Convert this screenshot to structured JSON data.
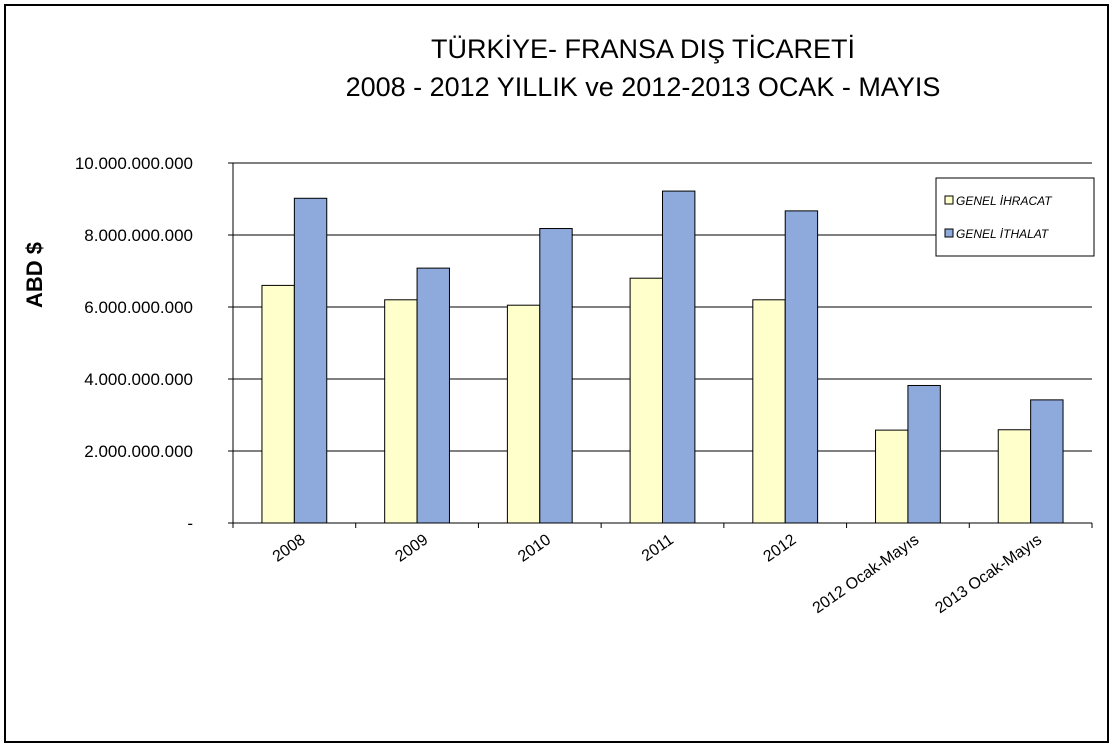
{
  "chart_data": {
    "type": "bar",
    "title": "TÜRKİYE- FRANSA  DIŞ TİCARETİ",
    "subtitle": "2008 - 2012 YILLIK ve 2012-2013 OCAK - MAYIS",
    "xlabel": "",
    "ylabel": "ABD $",
    "ylim": [
      0,
      10000000000
    ],
    "yticks": [
      0,
      2000000000,
      4000000000,
      6000000000,
      8000000000,
      10000000000
    ],
    "ytick_labels": [
      "-",
      "2.000.000.000",
      "4.000.000.000",
      "6.000.000.000",
      "8.000.000.000",
      "10.000.000.000"
    ],
    "categories": [
      "2008",
      "2009",
      "2010",
      "2011",
      "2012",
      "2012 Ocak-Mayıs",
      "2013 Ocak-Mayıs"
    ],
    "series": [
      {
        "name": "GENEL İHRACAT",
        "color": "#FFFFCC",
        "values": [
          6600000000,
          6200000000,
          6050000000,
          6800000000,
          6200000000,
          2580000000,
          2590000000
        ]
      },
      {
        "name": "GENEL İTHALAT",
        "color": "#8EA9DB",
        "values": [
          9020000000,
          7080000000,
          8180000000,
          9220000000,
          8670000000,
          3820000000,
          3420000000
        ]
      }
    ],
    "grid": true,
    "legend_position": "right"
  }
}
